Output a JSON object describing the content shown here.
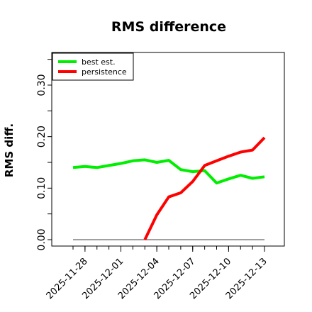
{
  "chart_data": {
    "type": "line",
    "title": "RMS difference",
    "xlabel": "",
    "ylabel": "RMS diff.",
    "ylim": [
      0.0,
      0.36
    ],
    "yticks": [
      0.0,
      0.1,
      0.2,
      0.3
    ],
    "ytick_labels": [
      "0.00",
      "0.10",
      "0.20",
      "0.30"
    ],
    "xlim": [
      "2025-11-25",
      "2025-12-14"
    ],
    "xticks": [
      "2025-11-28",
      "2025-12-01",
      "2025-12-04",
      "2025-12-07",
      "2025-12-10",
      "2025-12-13"
    ],
    "grid": false,
    "legend_position": "top-left",
    "reference_line": {
      "y": 0.0,
      "x_start": "2025-11-27",
      "x_end": "2025-12-13",
      "color": "#808080"
    },
    "x": [
      "2025-11-27",
      "2025-11-28",
      "2025-11-29",
      "2025-11-30",
      "2025-12-01",
      "2025-12-02",
      "2025-12-03",
      "2025-12-04",
      "2025-12-05",
      "2025-12-06",
      "2025-12-07",
      "2025-12-08",
      "2025-12-09",
      "2025-12-10",
      "2025-12-11",
      "2025-12-12",
      "2025-12-13"
    ],
    "series": [
      {
        "name": "best est.",
        "color": "#00ee00",
        "values": [
          0.14,
          0.142,
          0.14,
          0.144,
          0.148,
          0.153,
          0.155,
          0.15,
          0.154,
          0.136,
          0.132,
          0.134,
          0.11,
          0.118,
          0.125,
          0.119,
          0.122
        ]
      },
      {
        "name": "persistence",
        "color": "#ff0000",
        "values": [
          null,
          null,
          null,
          null,
          null,
          null,
          0.0,
          0.048,
          0.083,
          0.091,
          0.113,
          0.144,
          0.153,
          0.162,
          0.17,
          0.174,
          0.198
        ]
      }
    ]
  }
}
